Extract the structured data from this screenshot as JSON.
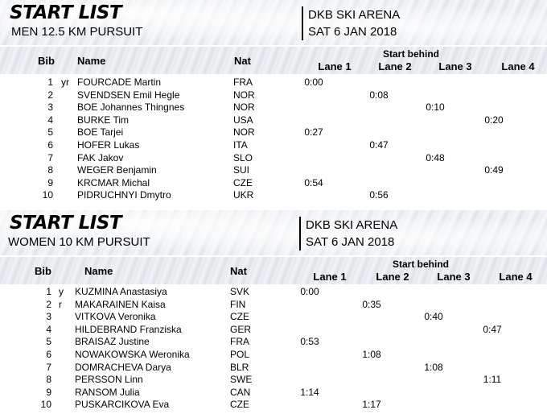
{
  "lists": [
    {
      "title": "START LIST",
      "subtitle": "MEN 12.5 KM PURSUIT",
      "venue": "DKB SKI ARENA",
      "date": "SAT 6 JAN 2018",
      "headers": {
        "bib": "Bib",
        "name": "Name",
        "nat": "Nat",
        "start_behind": "Start behind",
        "lanes": [
          "Lane 1",
          "Lane 2",
          "Lane 3",
          "Lane 4"
        ]
      },
      "rows": [
        {
          "bib": "1",
          "tag": "yr",
          "name": "FOURCADE Martin",
          "nat": "FRA",
          "lane": 1,
          "time": "0:00"
        },
        {
          "bib": "2",
          "tag": "",
          "name": "SVENDSEN Emil Hegle",
          "nat": "NOR",
          "lane": 2,
          "time": "0:08"
        },
        {
          "bib": "3",
          "tag": "",
          "name": "BOE Johannes Thingnes",
          "nat": "NOR",
          "lane": 3,
          "time": "0:10"
        },
        {
          "bib": "4",
          "tag": "",
          "name": "BURKE Tim",
          "nat": "USA",
          "lane": 4,
          "time": "0:20"
        },
        {
          "bib": "5",
          "tag": "",
          "name": "BOE Tarjei",
          "nat": "NOR",
          "lane": 1,
          "time": "0:27"
        },
        {
          "bib": "6",
          "tag": "",
          "name": "HOFER Lukas",
          "nat": "ITA",
          "lane": 2,
          "time": "0:47"
        },
        {
          "bib": "7",
          "tag": "",
          "name": "FAK Jakov",
          "nat": "SLO",
          "lane": 3,
          "time": "0:48"
        },
        {
          "bib": "8",
          "tag": "",
          "name": "WEGER Benjamin",
          "nat": "SUI",
          "lane": 4,
          "time": "0:49"
        },
        {
          "bib": "9",
          "tag": "",
          "name": "KRCMAR Michal",
          "nat": "CZE",
          "lane": 1,
          "time": "0:54"
        },
        {
          "bib": "10",
          "tag": "",
          "name": "PIDRUCHNYI Dmytro",
          "nat": "UKR",
          "lane": 2,
          "time": "0:56"
        }
      ]
    },
    {
      "title": "START LIST",
      "subtitle": "WOMEN 10 KM PURSUIT",
      "venue": "DKB SKI ARENA",
      "date": "SAT 6 JAN 2018",
      "headers": {
        "bib": "Bib",
        "name": "Name",
        "nat": "Nat",
        "start_behind": "Start behind",
        "lanes": [
          "Lane 1",
          "Lane 2",
          "Lane 3",
          "Lane 4"
        ]
      },
      "rows": [
        {
          "bib": "1",
          "tag": "y",
          "name": "KUZMINA Anastasiya",
          "nat": "SVK",
          "lane": 1,
          "time": "0:00"
        },
        {
          "bib": "2",
          "tag": "r",
          "name": "MAKARAINEN Kaisa",
          "nat": "FIN",
          "lane": 2,
          "time": "0:35"
        },
        {
          "bib": "3",
          "tag": "",
          "name": "VITKOVA Veronika",
          "nat": "CZE",
          "lane": 3,
          "time": "0:40"
        },
        {
          "bib": "4",
          "tag": "",
          "name": "HILDEBRAND Franziska",
          "nat": "GER",
          "lane": 4,
          "time": "0:47"
        },
        {
          "bib": "5",
          "tag": "",
          "name": "BRAISAZ Justine",
          "nat": "FRA",
          "lane": 1,
          "time": "0:53"
        },
        {
          "bib": "6",
          "tag": "",
          "name": "NOWAKOWSKA Weronika",
          "nat": "POL",
          "lane": 2,
          "time": "1:08"
        },
        {
          "bib": "7",
          "tag": "",
          "name": "DOMRACHEVA Darya",
          "nat": "BLR",
          "lane": 3,
          "time": "1:08"
        },
        {
          "bib": "8",
          "tag": "",
          "name": "PERSSON Linn",
          "nat": "SWE",
          "lane": 4,
          "time": "1:11"
        },
        {
          "bib": "9",
          "tag": "",
          "name": "RANSOM Julia",
          "nat": "CAN",
          "lane": 1,
          "time": "1:14"
        },
        {
          "bib": "10",
          "tag": "",
          "name": "PUSKARCIKOVA Eva",
          "nat": "CZE",
          "lane": 2,
          "time": "1:17"
        }
      ]
    }
  ]
}
